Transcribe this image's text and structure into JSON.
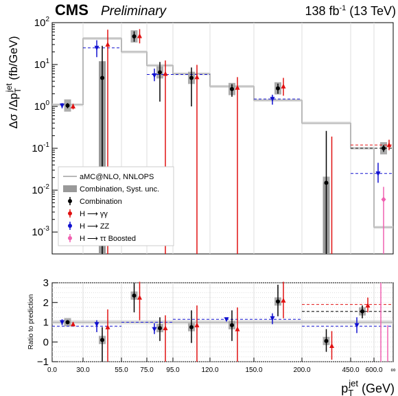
{
  "header": {
    "cms": "CMS",
    "preliminary": "Preliminary",
    "lumi": "138 fb",
    "lumi_exp": "-1",
    "energy": "(13 TeV)"
  },
  "colors": {
    "combination": "#000000",
    "hgg": "#e01010",
    "hzz": "#1010d0",
    "htt": "#f060b0",
    "prediction": "#707070",
    "syst": "#999999"
  },
  "chart_data": [
    {
      "type": "scatter",
      "panel": "main",
      "ylabel": "Δσ /Δp_T^jet (fb/GeV)",
      "yscale": "log",
      "ylim": [
        0.0003,
        100
      ],
      "yticks": [
        "10^-3",
        "10^-2",
        "10^-1",
        "10^0",
        "10^1",
        "10^2"
      ],
      "bins": [
        "0.0",
        "30.0",
        "55.0",
        "75.0",
        "95.0",
        "120.0",
        "150.0",
        "200.0",
        "450.0",
        "600.0",
        "∞"
      ],
      "legend": [
        {
          "label": "aMC@NLO, NNLOPS",
          "style": "line"
        },
        {
          "label": "Combination, Syst. unc.",
          "style": "box"
        },
        {
          "label": "Combination",
          "style": "marker-black"
        },
        {
          "label": "H ⟶ γγ",
          "style": "marker-red"
        },
        {
          "label": "H ⟶ ZZ",
          "style": "marker-blue"
        },
        {
          "label": "H ⟶ ττ Boosted",
          "style": "marker-pink"
        }
      ],
      "prediction": [
        1.1,
        42,
        20,
        9.5,
        6,
        3.0,
        1.4,
        0.4,
        0.1,
        0.0013,
        0.0005
      ],
      "series": [
        {
          "name": "Combination",
          "values": [
            1.05,
            4.8,
            47,
            6.5,
            4.8,
            2.6,
            2.7,
            0.015,
            null,
            0.1,
            null
          ],
          "err_lo": [
            0.9,
            0.0003,
            35,
            1.3,
            1.0,
            1.7,
            2.0,
            0.0003,
            null,
            0.082,
            null
          ],
          "err_hi": [
            1.2,
            28,
            62,
            11.5,
            8.5,
            3.4,
            3.5,
            0.26,
            null,
            0.12,
            null
          ]
        },
        {
          "name": "H ⟶ γγ",
          "values": [
            1.0,
            30,
            48,
            6.0,
            5.0,
            2.8,
            3.0,
            0.0003,
            null,
            0.12,
            null
          ],
          "err_lo": [
            0.85,
            0.0003,
            32,
            0.0003,
            0.0003,
            0.0003,
            1.8,
            0.0003,
            null,
            0.09,
            null
          ],
          "err_hi": [
            1.15,
            68,
            70,
            12.5,
            9.8,
            5.0,
            4.8,
            0.19,
            null,
            0.16,
            null
          ]
        },
        {
          "name": "H ⟶ ZZ",
          "values": [
            1.05,
            25,
            null,
            5.5,
            null,
            null,
            1.5,
            null,
            null,
            0.025,
            null
          ],
          "err_lo": [
            0.9,
            15,
            null,
            4.0,
            null,
            null,
            1.1,
            null,
            null,
            0.015,
            null
          ],
          "err_hi": [
            1.2,
            38,
            null,
            8.0,
            null,
            null,
            1.9,
            null,
            null,
            0.045,
            null
          ]
        },
        {
          "name": "H ⟶ ττ Boosted",
          "values": [
            null,
            null,
            null,
            null,
            null,
            null,
            null,
            null,
            null,
            0.006,
            0.0003
          ],
          "err_lo": [
            null,
            null,
            null,
            null,
            null,
            null,
            null,
            null,
            null,
            0.0003,
            null
          ],
          "err_hi": [
            null,
            null,
            null,
            null,
            null,
            null,
            null,
            null,
            null,
            0.012,
            0.0006
          ]
        }
      ]
    },
    {
      "type": "scatter",
      "panel": "ratio",
      "ylabel": "Ratio to prediction",
      "ylim": [
        -1,
        3
      ],
      "yticks": [
        "−1",
        "0",
        "1",
        "2",
        "3"
      ],
      "xlabel": "p_T^jet (GeV)",
      "series": [
        {
          "name": "Combination",
          "values": [
            1.0,
            0.1,
            2.35,
            0.7,
            0.75,
            0.85,
            2.05,
            0.05,
            1.55,
            null
          ],
          "err_lo": [
            0.9,
            -1,
            1.5,
            0.05,
            -0.05,
            0.05,
            1.3,
            -0.5,
            1.2,
            null
          ],
          "err_hi": [
            1.1,
            0.75,
            3.0,
            1.25,
            1.6,
            1.6,
            2.9,
            0.65,
            1.85,
            null
          ]
        },
        {
          "name": "H ⟶ γγ",
          "values": [
            0.9,
            0.75,
            2.25,
            0.7,
            0.85,
            0.65,
            2.1,
            -0.2,
            1.85,
            null
          ],
          "err_lo": [
            0.8,
            -1,
            1.1,
            -1,
            -1,
            -1,
            1.2,
            -0.9,
            1.5,
            null
          ],
          "err_hi": [
            1.0,
            1.65,
            3.05,
            1.35,
            1.85,
            1.75,
            3.05,
            0.55,
            2.25,
            null
          ]
        },
        {
          "name": "H ⟶ ZZ",
          "values": [
            1.0,
            0.9,
            null,
            0.65,
            null,
            1.15,
            1.2,
            null,
            0.85,
            null
          ],
          "err_lo": [
            0.85,
            0.5,
            null,
            0.4,
            null,
            null,
            0.9,
            null,
            0.45,
            null
          ],
          "err_hi": [
            1.15,
            1.1,
            null,
            0.95,
            null,
            null,
            1.45,
            null,
            1.25,
            null
          ]
        },
        {
          "name": "H ⟶ ττ Boosted",
          "values": [
            null,
            null,
            null,
            null,
            null,
            null,
            null,
            null,
            null,
            null
          ],
          "err_lo": [
            null,
            null,
            null,
            null,
            null,
            null,
            null,
            null,
            null,
            null
          ],
          "err_hi": [
            null,
            null,
            null,
            null,
            null,
            null,
            null,
            null,
            null,
            null
          ]
        }
      ],
      "fits": [
        {
          "name": "H ⟶ ZZ",
          "bins": [
            0,
            1
          ],
          "value": 0.8
        },
        {
          "name": "H ⟶ ZZ",
          "bins": [
            2,
            3
          ],
          "value": 1.0
        },
        {
          "name": "H ⟶ ZZ",
          "bins": [
            4,
            6
          ],
          "value": 1.15
        },
        {
          "name": "H ⟶ ZZ",
          "bins": [
            7,
            9
          ],
          "value": 0.8
        },
        {
          "name": "H ⟶ γγ",
          "bins": [
            7,
            9
          ],
          "value": 1.9
        },
        {
          "name": "Combination",
          "bins": [
            7,
            9
          ],
          "value": 1.55
        }
      ]
    }
  ]
}
